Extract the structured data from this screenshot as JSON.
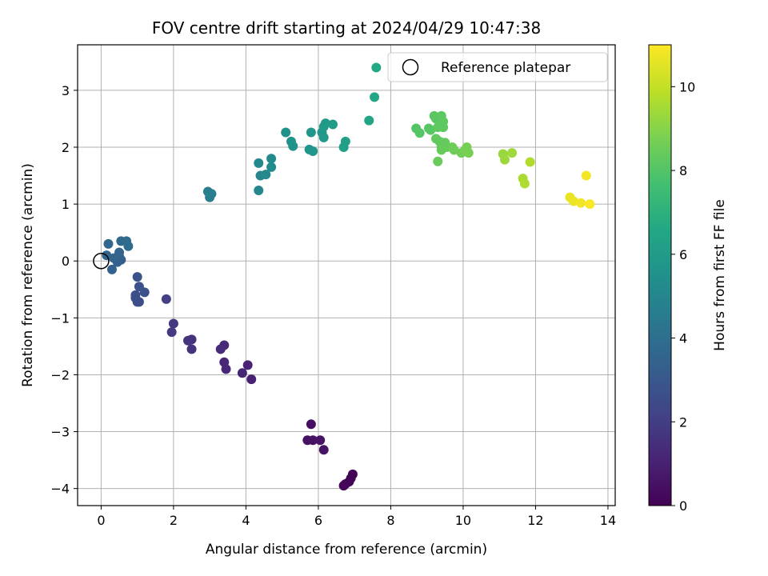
{
  "chart_data": {
    "type": "scatter",
    "title": "FOV centre drift starting at 2024/04/29 10:47:38",
    "xlabel": "Angular distance from reference (arcmin)",
    "ylabel": "Rotation from reference (arcmin)",
    "xlim": [
      -0.65,
      14.2
    ],
    "ylim": [
      -4.3,
      3.8
    ],
    "x_ticks": [
      0,
      2,
      4,
      6,
      8,
      10,
      12,
      14
    ],
    "y_ticks": [
      -4,
      -3,
      -2,
      -1,
      0,
      1,
      2,
      3
    ],
    "grid": true,
    "legend": {
      "label": "Reference platepar",
      "placement": "top-right"
    },
    "reference_point": {
      "x": 0,
      "y": 0
    },
    "colorbar": {
      "label": "Hours from first FF file",
      "min": 0,
      "max": 11,
      "ticks": [
        0,
        2,
        4,
        6,
        8,
        10
      ],
      "colormap": "viridis"
    },
    "points": [
      {
        "x": 6.95,
        "y": -3.75,
        "t": 0.05
      },
      {
        "x": 6.9,
        "y": -3.82,
        "t": 0.08
      },
      {
        "x": 6.85,
        "y": -3.88,
        "t": 0.1
      },
      {
        "x": 6.75,
        "y": -3.92,
        "t": 0.12
      },
      {
        "x": 6.7,
        "y": -3.95,
        "t": 0.14
      },
      {
        "x": 5.8,
        "y": -2.87,
        "t": 0.45
      },
      {
        "x": 5.7,
        "y": -3.15,
        "t": 0.5
      },
      {
        "x": 5.85,
        "y": -3.15,
        "t": 0.52
      },
      {
        "x": 6.05,
        "y": -3.15,
        "t": 0.55
      },
      {
        "x": 6.15,
        "y": -3.32,
        "t": 0.58
      },
      {
        "x": 4.15,
        "y": -2.08,
        "t": 1.0
      },
      {
        "x": 4.05,
        "y": -1.83,
        "t": 1.05
      },
      {
        "x": 3.9,
        "y": -1.97,
        "t": 1.1
      },
      {
        "x": 3.45,
        "y": -1.9,
        "t": 1.2
      },
      {
        "x": 3.4,
        "y": -1.78,
        "t": 1.25
      },
      {
        "x": 3.4,
        "y": -1.48,
        "t": 1.3
      },
      {
        "x": 3.3,
        "y": -1.55,
        "t": 1.35
      },
      {
        "x": 2.5,
        "y": -1.38,
        "t": 1.55
      },
      {
        "x": 2.5,
        "y": -1.55,
        "t": 1.6
      },
      {
        "x": 2.4,
        "y": -1.4,
        "t": 1.65
      },
      {
        "x": 2.0,
        "y": -1.1,
        "t": 1.8
      },
      {
        "x": 1.95,
        "y": -1.25,
        "t": 1.85
      },
      {
        "x": 1.8,
        "y": -0.67,
        "t": 2.1
      },
      {
        "x": 1.0,
        "y": -0.72,
        "t": 2.5
      },
      {
        "x": 1.05,
        "y": -0.72,
        "t": 2.55
      },
      {
        "x": 0.95,
        "y": -0.65,
        "t": 2.6
      },
      {
        "x": 0.95,
        "y": -0.6,
        "t": 2.65
      },
      {
        "x": 1.2,
        "y": -0.55,
        "t": 2.7
      },
      {
        "x": 1.05,
        "y": -0.45,
        "t": 2.75
      },
      {
        "x": 1.0,
        "y": -0.28,
        "t": 2.85
      },
      {
        "x": 0.55,
        "y": 0.02,
        "t": 3.3
      },
      {
        "x": 0.45,
        "y": -0.02,
        "t": 3.35
      },
      {
        "x": 0.3,
        "y": -0.15,
        "t": 3.4
      },
      {
        "x": 0.5,
        "y": 0.08,
        "t": 3.45
      },
      {
        "x": 0.5,
        "y": 0.15,
        "t": 3.5
      },
      {
        "x": 0.35,
        "y": 0.05,
        "t": 3.55
      },
      {
        "x": 0.15,
        "y": 0.1,
        "t": 3.6
      },
      {
        "x": 0.2,
        "y": 0.3,
        "t": 3.65
      },
      {
        "x": 0.55,
        "y": 0.35,
        "t": 3.75
      },
      {
        "x": 0.7,
        "y": 0.35,
        "t": 3.8
      },
      {
        "x": 0.75,
        "y": 0.26,
        "t": 3.85
      },
      {
        "x": 3.0,
        "y": 1.12,
        "t": 4.6
      },
      {
        "x": 2.95,
        "y": 1.22,
        "t": 4.65
      },
      {
        "x": 3.05,
        "y": 1.18,
        "t": 4.7
      },
      {
        "x": 4.35,
        "y": 1.24,
        "t": 5.0
      },
      {
        "x": 4.4,
        "y": 1.5,
        "t": 5.05
      },
      {
        "x": 4.55,
        "y": 1.52,
        "t": 5.1
      },
      {
        "x": 4.35,
        "y": 1.72,
        "t": 5.15
      },
      {
        "x": 4.7,
        "y": 1.65,
        "t": 5.2
      },
      {
        "x": 4.7,
        "y": 1.8,
        "t": 5.25
      },
      {
        "x": 5.1,
        "y": 2.26,
        "t": 5.5
      },
      {
        "x": 5.25,
        "y": 2.1,
        "t": 5.55
      },
      {
        "x": 5.3,
        "y": 2.02,
        "t": 5.6
      },
      {
        "x": 5.75,
        "y": 1.96,
        "t": 5.7
      },
      {
        "x": 5.85,
        "y": 1.93,
        "t": 5.75
      },
      {
        "x": 5.8,
        "y": 2.26,
        "t": 5.8
      },
      {
        "x": 6.1,
        "y": 2.26,
        "t": 5.85
      },
      {
        "x": 6.15,
        "y": 2.17,
        "t": 5.9
      },
      {
        "x": 6.15,
        "y": 2.36,
        "t": 5.95
      },
      {
        "x": 6.2,
        "y": 2.42,
        "t": 6.0
      },
      {
        "x": 6.4,
        "y": 2.4,
        "t": 6.05
      },
      {
        "x": 6.7,
        "y": 2.0,
        "t": 6.15
      },
      {
        "x": 6.75,
        "y": 2.1,
        "t": 6.2
      },
      {
        "x": 7.4,
        "y": 2.47,
        "t": 6.4
      },
      {
        "x": 7.55,
        "y": 2.88,
        "t": 6.5
      },
      {
        "x": 7.6,
        "y": 3.4,
        "t": 6.6
      },
      {
        "x": 8.7,
        "y": 2.33,
        "t": 8.0
      },
      {
        "x": 8.8,
        "y": 2.25,
        "t": 8.05
      },
      {
        "x": 9.05,
        "y": 2.33,
        "t": 8.1
      },
      {
        "x": 9.1,
        "y": 2.3,
        "t": 8.12
      },
      {
        "x": 9.2,
        "y": 2.55,
        "t": 8.15
      },
      {
        "x": 9.25,
        "y": 2.5,
        "t": 8.18
      },
      {
        "x": 9.4,
        "y": 2.55,
        "t": 8.2
      },
      {
        "x": 9.45,
        "y": 2.45,
        "t": 8.22
      },
      {
        "x": 9.3,
        "y": 2.35,
        "t": 8.25
      },
      {
        "x": 9.45,
        "y": 2.35,
        "t": 8.28
      },
      {
        "x": 9.25,
        "y": 2.15,
        "t": 8.3
      },
      {
        "x": 9.35,
        "y": 2.1,
        "t": 8.32
      },
      {
        "x": 9.4,
        "y": 2.0,
        "t": 8.35
      },
      {
        "x": 9.5,
        "y": 2.08,
        "t": 8.38
      },
      {
        "x": 9.55,
        "y": 2.0,
        "t": 8.4
      },
      {
        "x": 9.4,
        "y": 1.95,
        "t": 8.42
      },
      {
        "x": 9.3,
        "y": 1.75,
        "t": 8.45
      },
      {
        "x": 9.7,
        "y": 2.0,
        "t": 8.5
      },
      {
        "x": 9.75,
        "y": 1.95,
        "t": 8.55
      },
      {
        "x": 9.95,
        "y": 1.9,
        "t": 8.6
      },
      {
        "x": 10.05,
        "y": 1.95,
        "t": 8.65
      },
      {
        "x": 10.1,
        "y": 2.0,
        "t": 8.7
      },
      {
        "x": 10.15,
        "y": 1.9,
        "t": 8.75
      },
      {
        "x": 11.1,
        "y": 1.88,
        "t": 9.3
      },
      {
        "x": 11.15,
        "y": 1.78,
        "t": 9.35
      },
      {
        "x": 11.35,
        "y": 1.9,
        "t": 9.4
      },
      {
        "x": 11.65,
        "y": 1.45,
        "t": 9.6
      },
      {
        "x": 11.7,
        "y": 1.36,
        "t": 9.65
      },
      {
        "x": 11.85,
        "y": 1.74,
        "t": 9.7
      },
      {
        "x": 12.95,
        "y": 1.12,
        "t": 10.6
      },
      {
        "x": 13.05,
        "y": 1.05,
        "t": 10.7
      },
      {
        "x": 13.25,
        "y": 1.02,
        "t": 10.8
      },
      {
        "x": 13.4,
        "y": 1.5,
        "t": 10.85
      },
      {
        "x": 13.5,
        "y": 1.0,
        "t": 10.95
      }
    ]
  }
}
